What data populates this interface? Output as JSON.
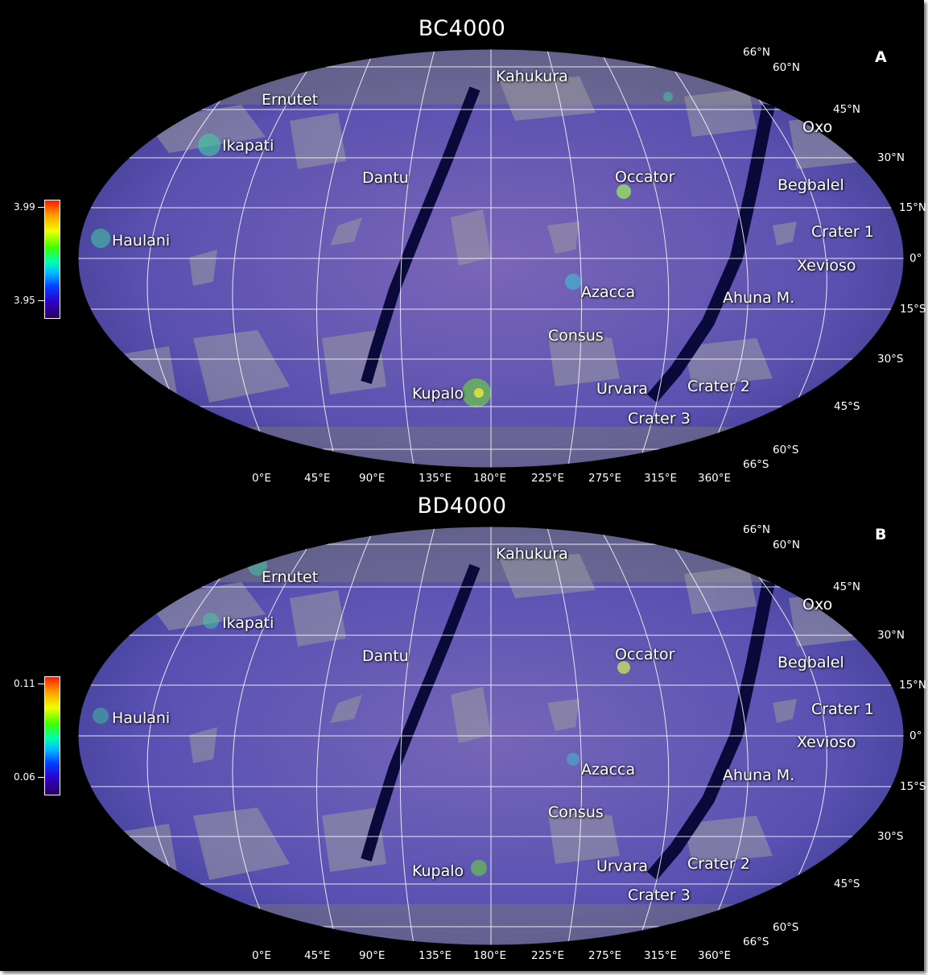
{
  "panels": [
    {
      "title": "BC4000",
      "letter": "A",
      "colorbar": {
        "max_label": "3.99",
        "min_label": "3.95"
      },
      "features": [
        "Kahukura",
        "Ernutet",
        "Ikapati",
        "Dantu",
        "Occator",
        "Oxo",
        "Begbalel",
        "Haulani",
        "Crater 1",
        "Xevioso",
        "Azacca",
        "Ahuna M.",
        "Consus",
        "Kupalo",
        "Urvara",
        "Crater 2",
        "Crater 3"
      ],
      "latitudes": [
        "66°N",
        "60°N",
        "45°N",
        "30°N",
        "15°N",
        "0°",
        "15°S",
        "30°S",
        "45°S",
        "60°S",
        "66°S"
      ],
      "longitudes": [
        "0°E",
        "45°E",
        "90°E",
        "135°E",
        "180°E",
        "225°E",
        "275°E",
        "315°E",
        "360°E"
      ]
    },
    {
      "title": "BD4000",
      "letter": "B",
      "colorbar": {
        "max_label": "0.11",
        "min_label": "0.06"
      },
      "features": [
        "Kahukura",
        "Ernutet",
        "Ikapati",
        "Dantu",
        "Occator",
        "Oxo",
        "Begbalel",
        "Haulani",
        "Crater 1",
        "Xevioso",
        "Azacca",
        "Ahuna M.",
        "Consus",
        "Kupalo",
        "Urvara",
        "Crater 2",
        "Crater 3"
      ],
      "latitudes": [
        "66°N",
        "60°N",
        "45°N",
        "30°N",
        "15°N",
        "0°",
        "15°S",
        "30°S",
        "45°S",
        "60°S",
        "66°S"
      ],
      "longitudes": [
        "0°E",
        "45°E",
        "90°E",
        "135°E",
        "180°E",
        "225°E",
        "275°E",
        "315°E",
        "360°E"
      ]
    }
  ],
  "colors": {
    "background": "#000000",
    "surface_base": "#6a5fb8",
    "graticule": "#ffffff",
    "gap_band": "#0a0a3a"
  }
}
